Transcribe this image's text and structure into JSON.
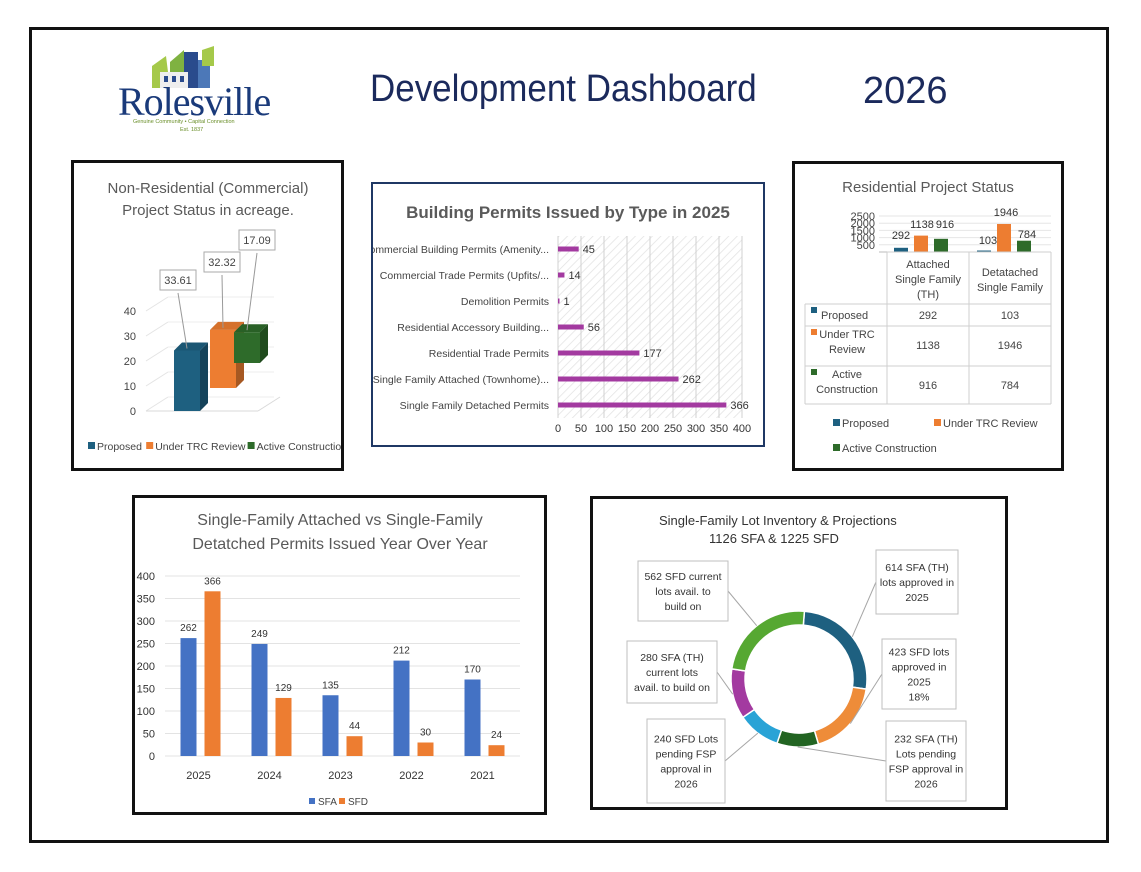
{
  "logo": {
    "name": "Rolesville",
    "tagline": "Genuine Community • Capital Connection",
    "est": "Est. 1837"
  },
  "header": {
    "title": "Development Dashboard",
    "year": "2026"
  },
  "colors": {
    "blue": "#1e6080",
    "orange": "#ed7d31",
    "green": "#2e6b2a",
    "purple": "#a33aa0",
    "sfa": "#4472c4",
    "sfd": "#ed7d31",
    "lightblue": "#29a3d6",
    "lightgreen": "#56a832",
    "darkgreen": "#226422",
    "donutOrange": "#ee8c39",
    "navy": "#1b2a5c"
  },
  "chart_data": [
    {
      "id": "nonres",
      "type": "bar",
      "title": "Non-Residential (Commercial) Project Status in acreage.",
      "title_lines": [
        "Non-Residential (Commercial)",
        "Project Status in acreage."
      ],
      "categories": [
        "Proposed",
        "Under TRC Review",
        "Active Construction"
      ],
      "values": [
        33.61,
        32.32,
        17.09
      ],
      "value_labels": [
        "33.61",
        "32.32",
        "17.09"
      ],
      "ylim": [
        0,
        40
      ],
      "yticks": [
        "0",
        "10",
        "20",
        "30",
        "40"
      ],
      "legend": [
        "Proposed",
        "Under TRC Review",
        "Active Construction"
      ]
    },
    {
      "id": "permits",
      "type": "bar",
      "orientation": "horizontal",
      "title": "Building Permits Issued by Type in 2025",
      "categories": [
        "Commercial Building Permits (Amenity...",
        "Commercial Trade Permits (Upfits/...",
        "Demolition Permits",
        "Residential Accessory Building...",
        "Residential Trade Permits",
        "Single Family Attached (Townhome)...",
        "Single Family Detached Permits"
      ],
      "values": [
        45,
        14,
        1,
        56,
        177,
        262,
        366
      ],
      "value_labels": [
        "45",
        "14",
        "1",
        "56",
        "177",
        "262",
        "366"
      ],
      "xlim": [
        0,
        400
      ],
      "xticks": [
        "0",
        "50",
        "100",
        "150",
        "200",
        "250",
        "300",
        "350",
        "400"
      ]
    },
    {
      "id": "residential",
      "type": "bar",
      "title": "Residential Project Status",
      "categories": [
        "Attached Single Family (TH)",
        "Detatached Single Family"
      ],
      "series": [
        {
          "name": "Proposed",
          "values": [
            292,
            103
          ]
        },
        {
          "name": "Under TRC Review",
          "values": [
            1138,
            1946
          ]
        },
        {
          "name": "Active Construction",
          "values": [
            916,
            784
          ]
        }
      ],
      "value_labels": [
        [
          "292",
          "1138",
          "916"
        ],
        [
          "103",
          "1946",
          "784"
        ]
      ],
      "ylim": [
        0,
        2500
      ],
      "yticks": [
        "2500",
        "2000",
        "1500",
        "1000",
        "500"
      ],
      "table": {
        "col1_lines": [
          "Attached",
          "Single Family",
          "(TH)"
        ],
        "col2_lines": [
          "Detatached",
          "Single Family"
        ],
        "rows": [
          {
            "label_lines": [
              "Proposed"
            ],
            "v1": "292",
            "v2": "103"
          },
          {
            "label_lines": [
              "Under TRC",
              "Review"
            ],
            "v1": "1138",
            "v2": "1946"
          },
          {
            "label_lines": [
              "Active",
              "Construction"
            ],
            "v1": "916",
            "v2": "784"
          }
        ]
      },
      "legend": [
        "Proposed",
        "Under TRC Review",
        "Active Construction"
      ]
    },
    {
      "id": "yoy",
      "type": "bar",
      "title": "Single-Family Attached vs Single-Family Detatched Permits Issued Year Over Year",
      "title_lines": [
        "Single-Family Attached vs Single-Family",
        "Detatched Permits Issued Year Over Year"
      ],
      "categories": [
        "2025",
        "2024",
        "2023",
        "2022",
        "2021"
      ],
      "series": [
        {
          "name": "SFA",
          "values": [
            262,
            249,
            135,
            212,
            170
          ]
        },
        {
          "name": "SFD",
          "values": [
            366,
            129,
            44,
            30,
            24
          ]
        }
      ],
      "value_labels": [
        [
          "262",
          "249",
          "135",
          "212",
          "170"
        ],
        [
          "366",
          "129",
          "44",
          "30",
          "24"
        ]
      ],
      "ylim": [
        0,
        400
      ],
      "yticks": [
        "0",
        "50",
        "100",
        "150",
        "200",
        "250",
        "300",
        "350",
        "400"
      ],
      "legend": [
        "SFA",
        "SFD"
      ]
    },
    {
      "id": "lots",
      "type": "pie",
      "title": "Single-Family Lot Inventory & Projections 1126 SFA & 1225 SFD",
      "title_lines": [
        "Single-Family Lot Inventory & Projections",
        "1126 SFA & 1225 SFD"
      ],
      "segments": [
        {
          "label": "614 SFA (TH) lots approved in 2025",
          "value": 614,
          "lines": [
            "614 SFA (TH)",
            "lots approved in",
            "2025"
          ]
        },
        {
          "label": "423 SFD lots approved in 2025 18%",
          "value": 423,
          "lines": [
            "423 SFD lots",
            "approved in",
            "2025",
            "18%"
          ]
        },
        {
          "label": "232 SFA (TH) Lots pending FSP approval in 2026",
          "value": 232,
          "lines": [
            "232 SFA (TH)",
            "Lots pending",
            "FSP approval in",
            "2026"
          ]
        },
        {
          "label": "240 SFD Lots pending FSP approval in 2026",
          "value": 240,
          "lines": [
            "240 SFD Lots",
            "pending FSP",
            "approval in",
            "2026"
          ]
        },
        {
          "label": "280 SFA (TH) current lots avail. to build on",
          "value": 280,
          "lines": [
            "280 SFA (TH)",
            "current lots",
            "avail. to build on"
          ]
        },
        {
          "label": "562 SFD current lots avail. to build on",
          "value": 562,
          "lines": [
            "562 SFD current",
            "lots avail. to",
            "build on"
          ]
        }
      ]
    }
  ]
}
